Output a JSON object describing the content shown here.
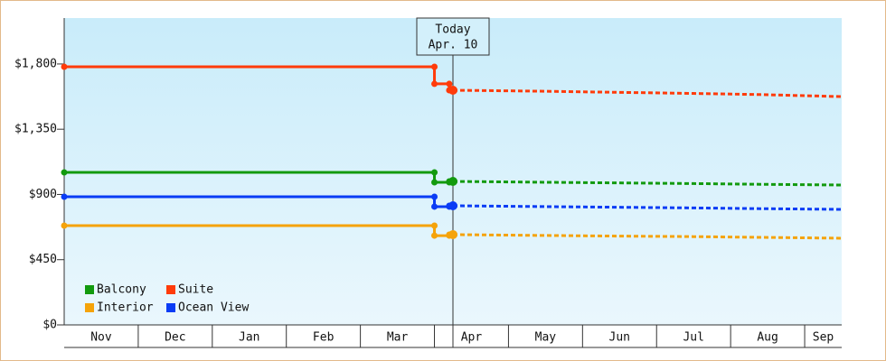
{
  "chart_data": {
    "type": "line",
    "categories": [
      "Nov",
      "Dec",
      "Jan",
      "Feb",
      "Mar",
      "Apr",
      "May",
      "Jun",
      "Jul",
      "Aug",
      "Sep"
    ],
    "xlim": [
      0,
      10.5
    ],
    "ylim": [
      0,
      2117
    ],
    "yticks": [
      {
        "value": 0,
        "label": "$0"
      },
      {
        "value": 450,
        "label": "$450"
      },
      {
        "value": 900,
        "label": "$900"
      },
      {
        "value": 1350,
        "label": "$1,350"
      },
      {
        "value": 1800,
        "label": "$1,800"
      }
    ],
    "today_label": "Today",
    "today_date": "Apr. 10",
    "today_x": 5.25,
    "series": [
      {
        "name": "Balcony",
        "color": "#129a0e",
        "x": [
          0,
          5,
          5,
          5.2,
          5.2,
          5.25
        ],
        "values": [
          1052,
          1052,
          984,
          984,
          990,
          990
        ],
        "forecast_x": [
          5.25,
          6.5,
          7.4,
          8.5,
          9.4,
          10.5
        ],
        "forecast_values": [
          990,
          984,
          980,
          975,
          970,
          965
        ]
      },
      {
        "name": "Suite",
        "color": "#ff3b0a",
        "x": [
          0,
          5,
          5,
          5.2,
          5.2,
          5.25
        ],
        "values": [
          1781,
          1781,
          1663,
          1663,
          1619,
          1619
        ],
        "forecast_x": [
          5.25,
          6.5,
          7.4,
          8.5,
          9.4,
          10.5
        ],
        "forecast_values": [
          1619,
          1612,
          1605,
          1597,
          1589,
          1575
        ]
      },
      {
        "name": "Interior",
        "color": "#f5a30a",
        "x": [
          0,
          5,
          5,
          5.2,
          5.2,
          5.25
        ],
        "values": [
          685,
          685,
          616,
          616,
          623,
          623
        ],
        "forecast_x": [
          5.25,
          6.5,
          7.4,
          8.5,
          9.4,
          10.5
        ],
        "forecast_values": [
          623,
          617,
          613,
          609,
          604,
          598
        ]
      },
      {
        "name": "Ocean View",
        "color": "#0a3cf5",
        "x": [
          0,
          5,
          5,
          5.2,
          5.2,
          5.25
        ],
        "values": [
          884,
          884,
          816,
          816,
          822,
          822
        ],
        "forecast_x": [
          5.25,
          6.5,
          7.4,
          8.5,
          9.4,
          10.5
        ],
        "forecast_values": [
          822,
          816,
          812,
          807,
          802,
          797
        ]
      }
    ]
  }
}
